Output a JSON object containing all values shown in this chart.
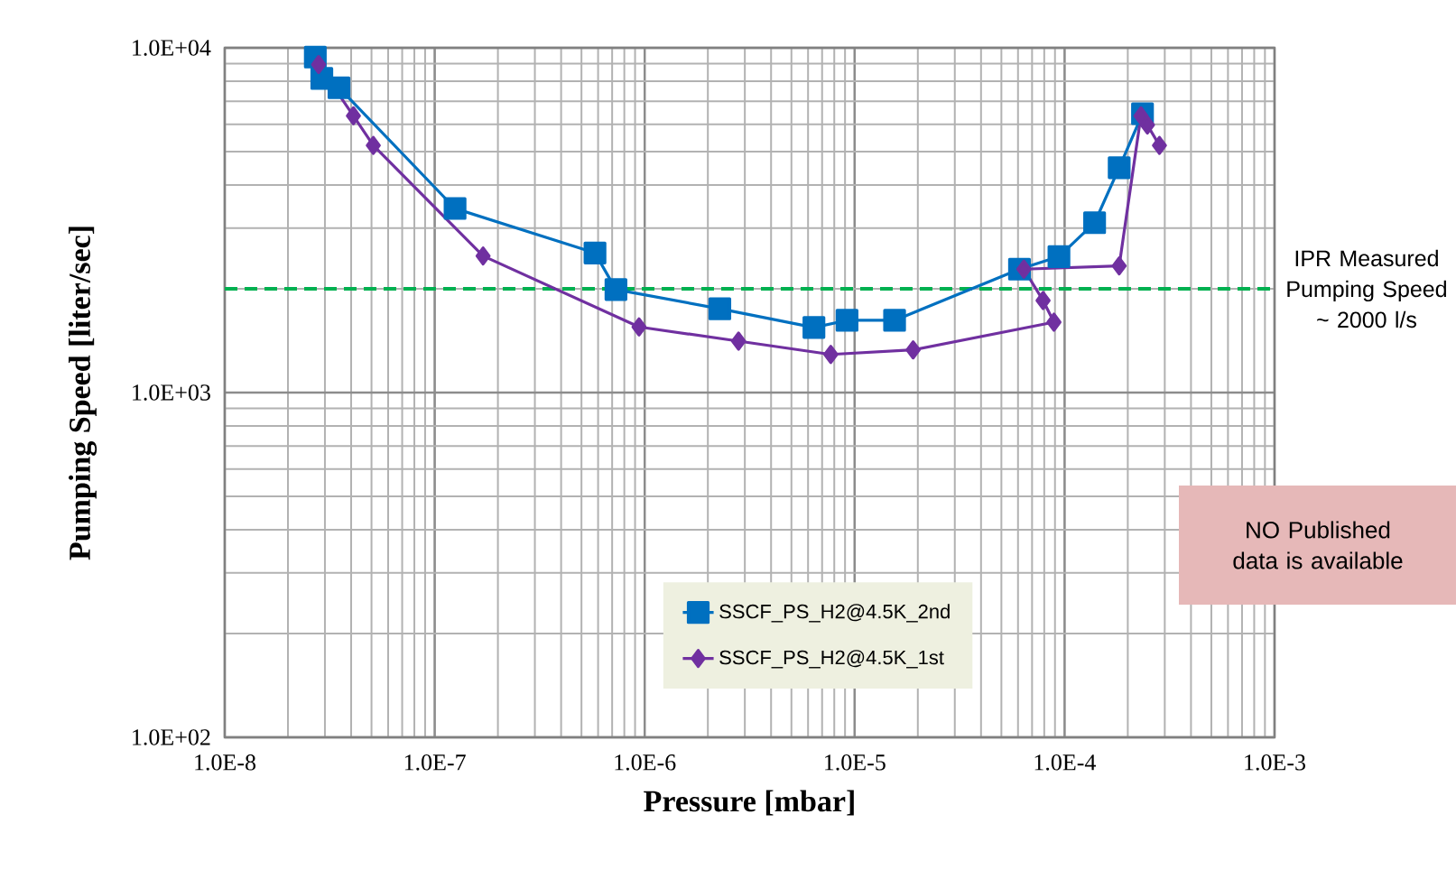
{
  "chart_data": {
    "type": "line",
    "xlabel": "Pressure [mbar]",
    "ylabel": "Pumping  Speed [liter/sec]",
    "log": "xy",
    "grid": true,
    "legend": "bottom",
    "xlim": [
      1e-08,
      0.001
    ],
    "ylim": [
      100,
      10000
    ],
    "xticks": [
      {
        "value": 1e-08,
        "label": "1.0E-8"
      },
      {
        "value": 1e-07,
        "label": "1.0E-7"
      },
      {
        "value": 1e-06,
        "label": "1.0E-6"
      },
      {
        "value": 1e-05,
        "label": "1.0E-5"
      },
      {
        "value": 0.0001,
        "label": "1.0E-4"
      },
      {
        "value": 0.001,
        "label": "1.0E-3"
      }
    ],
    "yticks": [
      {
        "value": 100,
        "label": "1.0E+02"
      },
      {
        "value": 1000,
        "label": "1.0E+03"
      },
      {
        "value": 10000,
        "label": "1.0E+04"
      }
    ],
    "series": [
      {
        "name": "SSCF_PS_H2@4.5K_2nd",
        "color": "#0070c0",
        "marker": "square",
        "x": [
          2.7e-08,
          2.9e-08,
          3.5e-08,
          1.25e-07,
          5.8e-07,
          7.3e-07,
          2.28e-06,
          6.4e-06,
          9.2e-06,
          1.55e-05,
          6.1e-05,
          9.4e-05,
          0.000139,
          0.000182,
          0.000235
        ],
        "values": [
          9400,
          8150,
          7660,
          3420,
          2540,
          1990,
          1750,
          1545,
          1620,
          1620,
          2280,
          2480,
          3110,
          4490,
          6440
        ]
      },
      {
        "name": "SSCF_PS_H2@4.5K_1st",
        "color": "#7030a0",
        "marker": "diamond",
        "x": [
          2.8e-08,
          4.1e-08,
          5.1e-08,
          1.7e-07,
          9.4e-07,
          2.8e-06,
          7.7e-06,
          1.9e-05,
          8.9e-05,
          7.9e-05,
          6.4e-05,
          0.000182,
          0.000231,
          0.000248,
          0.000283
        ],
        "values": [
          8940,
          6350,
          5210,
          2490,
          1550,
          1410,
          1290,
          1330,
          1600,
          1850,
          2280,
          2330,
          6350,
          5970,
          5210
        ]
      }
    ],
    "ref_lines": [
      {
        "axis": "y",
        "value": 2000,
        "label": "IPR Measured Pumping  Speed ~ 2000 l/s",
        "color": "#00b050",
        "line_style": "dashed"
      }
    ],
    "annotations": [
      "NO Published  data is available"
    ]
  }
}
